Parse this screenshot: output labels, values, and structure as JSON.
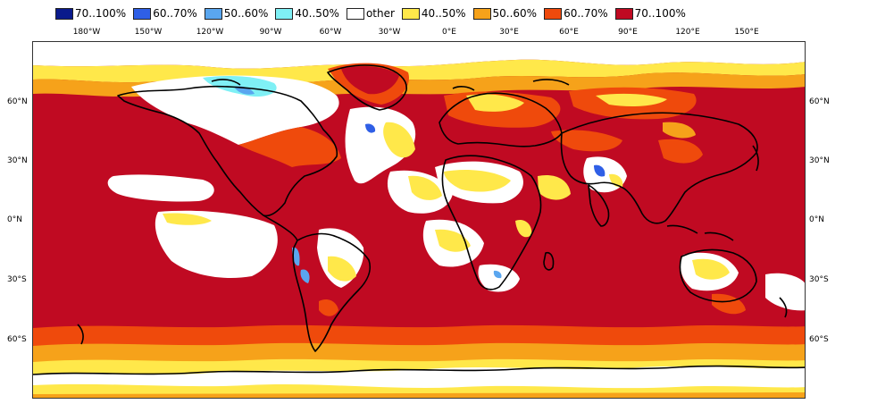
{
  "legend": {
    "items": [
      {
        "label": "70..100%",
        "color": "#0a1a8c"
      },
      {
        "label": "60..70%",
        "color": "#2f5fe6"
      },
      {
        "label": "50..60%",
        "color": "#5aa6ef"
      },
      {
        "label": "40..50%",
        "color": "#7ff0f5"
      },
      {
        "label": "other",
        "color": "#ffffff"
      },
      {
        "label": "40..50%",
        "color": "#ffe84a"
      },
      {
        "label": "50..60%",
        "color": "#f6a21a"
      },
      {
        "label": "60..70%",
        "color": "#ef4a0c"
      },
      {
        "label": "70..100%",
        "color": "#c00a22"
      }
    ]
  },
  "map": {
    "longitude_ticks": [
      "180°W",
      "150°W",
      "120°W",
      "90°W",
      "60°W",
      "30°W",
      "0°E",
      "30°E",
      "60°E",
      "90°E",
      "120°E",
      "150°E"
    ],
    "latitude_ticks_left": [
      "60°N",
      "30°N",
      "0°N",
      "30°S",
      "60°S"
    ],
    "latitude_ticks_right": [
      "60°N",
      "30°N",
      "0°N",
      "30°S",
      "60°S"
    ],
    "colors": {
      "coastline": "#000000",
      "ocean_dominant": "#c00a22"
    }
  }
}
